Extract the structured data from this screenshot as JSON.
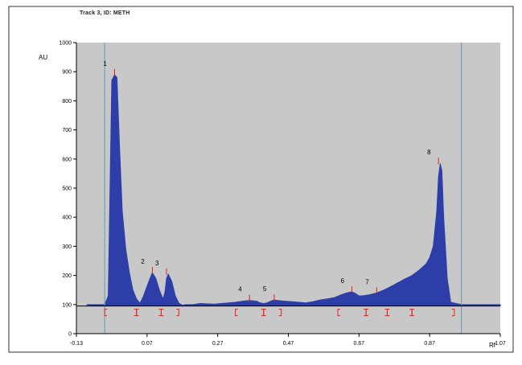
{
  "title": "Track 3, ID: METH",
  "chart_data": {
    "type": "area",
    "title": "Track 3, ID: METH",
    "xlabel": "Rf",
    "ylabel": "AU",
    "xlim": [
      -0.13,
      1.07
    ],
    "ylim": [
      0,
      1000
    ],
    "x_ticks": [
      "-0.13",
      "0.07",
      "0.27",
      "0.47",
      "0.67",
      "0.87",
      "1.07"
    ],
    "y_ticks": [
      "0",
      "100",
      "200",
      "300",
      "400",
      "500",
      "600",
      "700",
      "800",
      "900",
      "1000"
    ],
    "baseline": 95,
    "colors": {
      "plot_bg": "#c8c8c8",
      "fill": "#2d3ea8",
      "marker": "#e02020",
      "axis": "#000000",
      "vline": "#5aa0b4"
    },
    "start_line_rf": -0.05,
    "front_line_rf": 0.96,
    "series": [
      {
        "x": [
          -0.1,
          -0.05,
          -0.04,
          -0.035,
          -0.03,
          -0.022,
          -0.015,
          -0.008,
          0.0,
          0.01,
          0.02,
          0.03,
          0.04,
          0.05,
          0.06,
          0.075,
          0.085,
          0.095,
          0.105,
          0.115,
          0.12,
          0.125,
          0.13,
          0.14,
          0.15,
          0.16,
          0.17,
          0.18,
          0.2,
          0.22,
          0.26,
          0.3,
          0.32,
          0.34,
          0.36,
          0.38,
          0.39,
          0.4,
          0.41,
          0.42,
          0.43,
          0.44,
          0.46,
          0.48,
          0.5,
          0.52,
          0.54,
          0.56,
          0.58,
          0.6,
          0.62,
          0.635,
          0.65,
          0.66,
          0.67,
          0.68,
          0.7,
          0.72,
          0.74,
          0.76,
          0.78,
          0.8,
          0.82,
          0.84,
          0.86,
          0.87,
          0.88,
          0.89,
          0.895,
          0.9,
          0.905,
          0.91,
          0.92,
          0.93,
          0.96,
          1.0,
          1.07
        ],
        "y": [
          100,
          100,
          130,
          500,
          870,
          890,
          880,
          650,
          420,
          290,
          210,
          150,
          120,
          105,
          130,
          180,
          210,
          190,
          150,
          120,
          140,
          190,
          205,
          180,
          130,
          105,
          98,
          100,
          100,
          104,
          102,
          106,
          108,
          112,
          114,
          112,
          106,
          104,
          106,
          112,
          116,
          114,
          112,
          110,
          108,
          106,
          110,
          116,
          120,
          124,
          134,
          140,
          144,
          138,
          130,
          130,
          134,
          140,
          150,
          162,
          175,
          188,
          200,
          218,
          240,
          262,
          300,
          420,
          540,
          585,
          560,
          400,
          190,
          108,
          100,
          100,
          100
        ]
      }
    ],
    "peaks": [
      {
        "label": "1",
        "rf": -0.022,
        "au": 890
      },
      {
        "label": "2",
        "rf": 0.085,
        "au": 210
      },
      {
        "label": "3",
        "rf": 0.125,
        "au": 205
      },
      {
        "label": "4",
        "rf": 0.36,
        "au": 114
      },
      {
        "label": "5",
        "rf": 0.43,
        "au": 116
      },
      {
        "label": "6",
        "rf": 0.65,
        "au": 144
      },
      {
        "label": "7",
        "rf": 0.72,
        "au": 140
      },
      {
        "label": "8",
        "rf": 0.895,
        "au": 585
      }
    ],
    "integration_brackets": [
      [
        -0.05,
        0.04
      ],
      [
        0.04,
        0.11
      ],
      [
        0.11,
        0.16
      ],
      [
        0.32,
        0.4
      ],
      [
        0.4,
        0.45
      ],
      [
        0.61,
        0.69
      ],
      [
        0.69,
        0.75
      ],
      [
        0.75,
        0.82
      ],
      [
        0.82,
        0.94
      ]
    ]
  }
}
